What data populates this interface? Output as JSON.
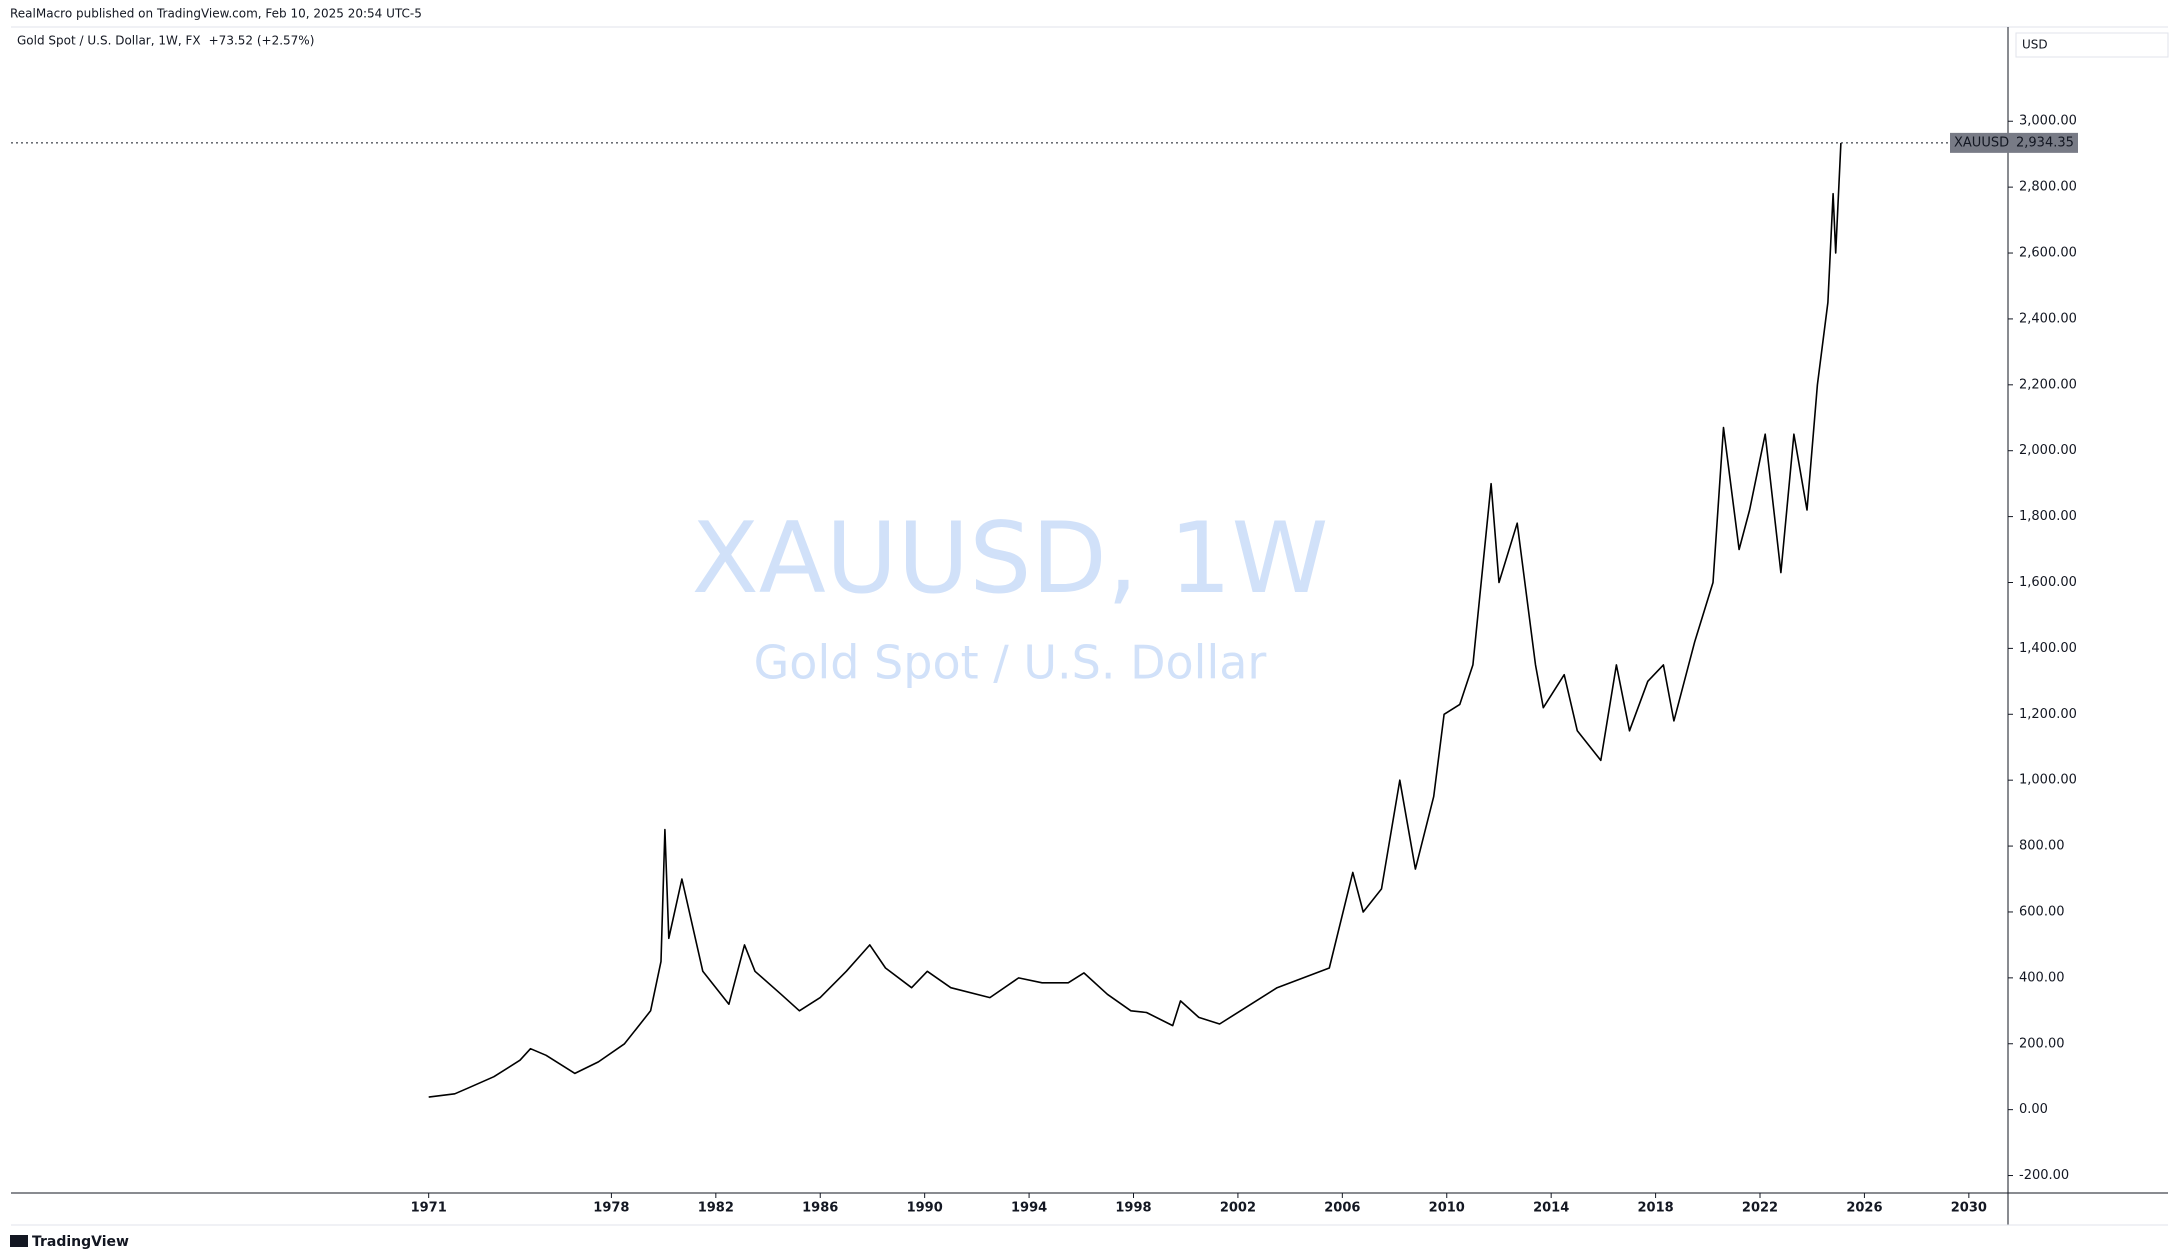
{
  "header": {
    "publisher": "RealMacro published on TradingView.com, Feb 10, 2025 20:54 UTC-5",
    "footer": "TradingView"
  },
  "chart_data": {
    "type": "line",
    "title": "Gold Spot / U.S. Dollar, 1W, FX",
    "change": "+73.52 (+2.57%)",
    "watermark": "XAUUSD, 1W",
    "watermark_subtitle": "Gold Spot / U.S. Dollar",
    "currency": "USD",
    "symbol": "XAUUSD",
    "last_price": {
      "value": 2934.35,
      "label": "2,934.35"
    },
    "color": "#000000",
    "x": [
      1971.0,
      1972.0,
      1972.5,
      1973.5,
      1974.5,
      1974.9,
      1975.5,
      1976.6,
      1977.5,
      1978.5,
      1979.5,
      1979.9,
      1980.05,
      1980.2,
      1980.7,
      1981.5,
      1982.5,
      1983.1,
      1983.5,
      1984.5,
      1985.2,
      1986.0,
      1987.0,
      1987.9,
      1988.5,
      1989.5,
      1990.1,
      1991.0,
      1992.5,
      1993.6,
      1994.5,
      1995.5,
      1996.1,
      1997.0,
      1997.9,
      1998.5,
      1999.5,
      1999.8,
      2000.5,
      2001.3,
      2002.5,
      2003.5,
      2004.5,
      2005.5,
      2006.4,
      2006.8,
      2007.5,
      2008.2,
      2008.8,
      2009.5,
      2009.9,
      2010.5,
      2011.0,
      2011.7,
      2012.0,
      2012.7,
      2013.4,
      2013.7,
      2014.5,
      2015.0,
      2015.9,
      2016.5,
      2017.0,
      2017.7,
      2018.3,
      2018.7,
      2019.5,
      2020.2,
      2020.6,
      2021.2,
      2021.6,
      2022.2,
      2022.8,
      2023.3,
      2023.8,
      2024.2,
      2024.6,
      2024.8,
      2024.9,
      2025.1
    ],
    "values": [
      38,
      48,
      65,
      100,
      150,
      185,
      165,
      110,
      145,
      200,
      300,
      450,
      850,
      520,
      700,
      420,
      320,
      500,
      420,
      350,
      300,
      340,
      420,
      500,
      430,
      370,
      420,
      370,
      340,
      400,
      385,
      385,
      415,
      350,
      300,
      295,
      255,
      330,
      280,
      260,
      320,
      370,
      400,
      430,
      720,
      600,
      670,
      1000,
      730,
      950,
      1200,
      1230,
      1350,
      1900,
      1600,
      1780,
      1350,
      1220,
      1320,
      1150,
      1060,
      1350,
      1150,
      1300,
      1350,
      1180,
      1420,
      1600,
      2070,
      1700,
      1820,
      2050,
      1630,
      2050,
      1820,
      2200,
      2450,
      2780,
      2600,
      2934.35
    ],
    "xlim": [
      1955,
      2031.5
    ],
    "xticks": [
      1971,
      1978,
      1982,
      1986,
      1990,
      1994,
      1998,
      2002,
      2006,
      2010,
      2014,
      2018,
      2022,
      2026,
      2030
    ],
    "ylim": [
      -253,
      3283
    ],
    "yticks": [
      {
        "value": -200,
        "label": "-200.00"
      },
      {
        "value": 0,
        "label": "0.00"
      },
      {
        "value": 200,
        "label": "200.00"
      },
      {
        "value": 400,
        "label": "400.00"
      },
      {
        "value": 600,
        "label": "600.00"
      },
      {
        "value": 800,
        "label": "800.00"
      },
      {
        "value": 1000,
        "label": "1,000.00"
      },
      {
        "value": 1200,
        "label": "1,200.00"
      },
      {
        "value": 1400,
        "label": "1,400.00"
      },
      {
        "value": 1600,
        "label": "1,600.00"
      },
      {
        "value": 1800,
        "label": "1,800.00"
      },
      {
        "value": 2000,
        "label": "2,000.00"
      },
      {
        "value": 2200,
        "label": "2,200.00"
      },
      {
        "value": 2400,
        "label": "2,400.00"
      },
      {
        "value": 2600,
        "label": "2,600.00"
      },
      {
        "value": 2800,
        "label": "2,800.00"
      },
      {
        "value": 3000,
        "label": "3,000.00"
      }
    ],
    "grid": false
  }
}
